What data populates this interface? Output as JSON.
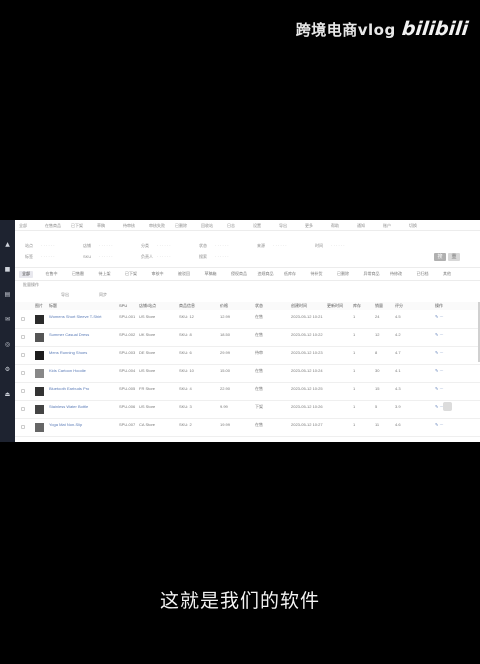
{
  "watermark": {
    "text": "跨境电商vlog",
    "logo": "bilibili"
  },
  "subtitle": "这就是我们的软件",
  "sidebar": {
    "items": [
      {
        "label": "▲",
        "icon": "home-icon"
      },
      {
        "label": "■",
        "icon": "product-icon"
      },
      {
        "label": "▤",
        "icon": "order-icon"
      },
      {
        "label": "✉",
        "icon": "message-icon"
      },
      {
        "label": "◎",
        "icon": "analytics-icon"
      },
      {
        "label": "⚙",
        "icon": "settings-icon"
      },
      {
        "label": "⏏",
        "icon": "logout-icon"
      }
    ]
  },
  "top_nav": [
    "全部",
    "在售商品",
    "已下架",
    "草稿",
    "待审核",
    "审核失败",
    "已删除",
    "回收站",
    "日志",
    "设置",
    "导出",
    "更多",
    "帮助",
    "通知",
    "账户",
    "切换"
  ],
  "filters": [
    "站点",
    "店铺",
    "分类",
    "状态",
    "来源",
    "时间",
    "标签",
    "SKU",
    "负责人",
    "搜索"
  ],
  "filter_buttons": {
    "search": "搜",
    "reset": "重"
  },
  "tabs": [
    "全部",
    "在售中",
    "已售罄",
    "待上架",
    "已下架",
    "审核中",
    "被驳回",
    "草稿箱",
    "侵权商品",
    "违规商品",
    "低库存",
    "待补货",
    "已删除",
    "异常商品",
    "待修改",
    "已归档",
    "其他"
  ],
  "sub_actions": [
    "批量操作",
    "导出",
    "同步"
  ],
  "table": {
    "headers": [
      "",
      "图片",
      "标题",
      "SPU",
      "店铺/站点",
      "商品信息",
      "价格",
      "状态",
      "创建时间",
      "更新时间",
      "库存",
      "销量",
      "评分",
      "操作"
    ],
    "rows": [
      {
        "title": "Womens Short Sleeve T-Shirt",
        "spu": "SPU-001",
        "store": "US Store",
        "info": "SKU: 12",
        "price": "12.99",
        "status": "在售",
        "created": "2023-05-12 10:21",
        "stock": "1",
        "sales": "24",
        "rating": "4.5"
      },
      {
        "title": "Summer Casual Dress",
        "spu": "SPU-002",
        "store": "UK Store",
        "info": "SKU: 8",
        "price": "18.50",
        "status": "在售",
        "created": "2023-05-12 10:22",
        "stock": "1",
        "sales": "12",
        "rating": "4.2"
      },
      {
        "title": "Mens Running Shoes",
        "spu": "SPU-003",
        "store": "DE Store",
        "info": "SKU: 6",
        "price": "29.99",
        "status": "待审",
        "created": "2023-05-12 10:23",
        "stock": "1",
        "sales": "8",
        "rating": "4.7"
      },
      {
        "title": "Kids Cartoon Hoodie",
        "spu": "SPU-004",
        "store": "US Store",
        "info": "SKU: 10",
        "price": "15.00",
        "status": "在售",
        "created": "2023-05-12 10:24",
        "stock": "1",
        "sales": "30",
        "rating": "4.1"
      },
      {
        "title": "Bluetooth Earbuds Pro",
        "spu": "SPU-005",
        "store": "FR Store",
        "info": "SKU: 4",
        "price": "22.90",
        "status": "在售",
        "created": "2023-05-12 10:25",
        "stock": "1",
        "sales": "15",
        "rating": "4.3"
      },
      {
        "title": "Stainless Water Bottle",
        "spu": "SPU-006",
        "store": "US Store",
        "info": "SKU: 3",
        "price": "9.99",
        "status": "下架",
        "created": "2023-05-12 10:26",
        "stock": "1",
        "sales": "5",
        "rating": "3.9"
      },
      {
        "title": "Yoga Mat Non-Slip",
        "spu": "SPU-007",
        "store": "CA Store",
        "info": "SKU: 2",
        "price": "19.99",
        "status": "在售",
        "created": "2023-05-12 10:27",
        "stock": "1",
        "sales": "11",
        "rating": "4.6"
      }
    ]
  },
  "colors": {
    "sidebar_bg": "#1e2330",
    "accent": "#5a7bb7"
  }
}
